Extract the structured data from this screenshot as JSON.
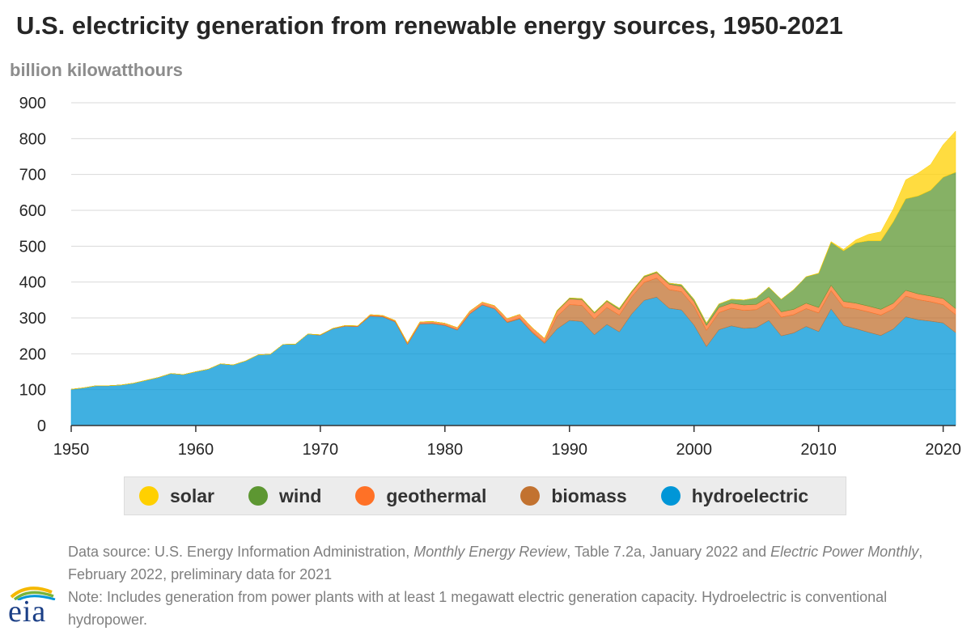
{
  "title": "U.S. electricity generation from renewable energy sources, 1950-2021",
  "unit_label": "billion kilowatthours",
  "legend": [
    {
      "key": "solar",
      "label": "solar",
      "color": "#ffd000"
    },
    {
      "key": "wind",
      "label": "wind",
      "color": "#5d9732"
    },
    {
      "key": "geothermal",
      "label": "geothermal",
      "color": "#ff7126"
    },
    {
      "key": "biomass",
      "label": "biomass",
      "color": "#c27230"
    },
    {
      "key": "hydroelectric",
      "label": "hydroelectric",
      "color": "#0096d7"
    }
  ],
  "footnote": {
    "source_prefix": "Data source: U.S. Energy Information Administration, ",
    "source_pub1": "Monthly Energy Review",
    "source_mid": ", Table 7.2a, January 2022 and ",
    "source_pub2": "Electric Power Monthly",
    "source_suffix": ", February 2022, preliminary data for 2021",
    "note": "Note: Includes generation from power plants with at least 1 megawatt electric generation capacity. Hydroelectric is conventional hydropower."
  },
  "logo_text": "eia",
  "chart_data": {
    "type": "area",
    "stacked": true,
    "title": "U.S. electricity generation from renewable energy sources, 1950-2021",
    "ylabel": "billion kilowatthours",
    "xlabel": "",
    "xlim": [
      1950,
      2021
    ],
    "ylim": [
      0,
      900
    ],
    "yticks": [
      0,
      100,
      200,
      300,
      400,
      500,
      600,
      700,
      800,
      900
    ],
    "xticks": [
      1950,
      1960,
      1970,
      1980,
      1990,
      2000,
      2010,
      2020
    ],
    "grid": "horizontal",
    "legend_position": "bottom",
    "x": [
      1950,
      1951,
      1952,
      1953,
      1954,
      1955,
      1956,
      1957,
      1958,
      1959,
      1960,
      1961,
      1962,
      1963,
      1964,
      1965,
      1966,
      1967,
      1968,
      1969,
      1970,
      1971,
      1972,
      1973,
      1974,
      1975,
      1976,
      1977,
      1978,
      1979,
      1980,
      1981,
      1982,
      1983,
      1984,
      1985,
      1986,
      1987,
      1988,
      1989,
      1990,
      1991,
      1992,
      1993,
      1994,
      1995,
      1996,
      1997,
      1998,
      1999,
      2000,
      2001,
      2002,
      2003,
      2004,
      2005,
      2006,
      2007,
      2008,
      2009,
      2010,
      2011,
      2012,
      2013,
      2014,
      2015,
      2016,
      2017,
      2018,
      2019,
      2020,
      2021
    ],
    "series": [
      {
        "name": "hydroelectric",
        "color": "#0096d7",
        "values": [
          101,
          105,
          111,
          111,
          113,
          118,
          126,
          134,
          145,
          142,
          150,
          157,
          172,
          169,
          180,
          197,
          199,
          226,
          227,
          255,
          252,
          270,
          277,
          276,
          305,
          303,
          289,
          226,
          283,
          284,
          279,
          266,
          311,
          336,
          325,
          287,
          297,
          259,
          229,
          269,
          293,
          290,
          253,
          282,
          261,
          311,
          349,
          358,
          327,
          322,
          280,
          220,
          267,
          278,
          271,
          273,
          293,
          250,
          258,
          276,
          262,
          325,
          279,
          270,
          260,
          251,
          269,
          303,
          295,
          291,
          286,
          259
        ]
      },
      {
        "name": "biomass",
        "color": "#c27230",
        "values": [
          0,
          0,
          0,
          0,
          0,
          0,
          0,
          0,
          0,
          0,
          0,
          0,
          0,
          0,
          0,
          0,
          0,
          0,
          0,
          0,
          0,
          0,
          0,
          0,
          1,
          1,
          1,
          1,
          1,
          1,
          1,
          1,
          1,
          1,
          1,
          2,
          2,
          3,
          3,
          35,
          44,
          45,
          44,
          47,
          47,
          48,
          50,
          53,
          52,
          51,
          52,
          45,
          48,
          49,
          50,
          50,
          51,
          52,
          51,
          50,
          52,
          51,
          51,
          55,
          57,
          57,
          56,
          58,
          56,
          54,
          51,
          50
        ]
      },
      {
        "name": "geothermal",
        "color": "#ff7126",
        "values": [
          0,
          0,
          0,
          0,
          0,
          0,
          0,
          0,
          0,
          0,
          0,
          0,
          0,
          0,
          0,
          0,
          0,
          0,
          0,
          0,
          1,
          1,
          2,
          2,
          3,
          3,
          3,
          4,
          5,
          5,
          5,
          6,
          7,
          7,
          8,
          9,
          11,
          11,
          11,
          15,
          16,
          16,
          16,
          17,
          15,
          13,
          15,
          15,
          15,
          15,
          14,
          14,
          14,
          14,
          15,
          15,
          15,
          15,
          15,
          15,
          15,
          15,
          16,
          16,
          16,
          16,
          16,
          16,
          16,
          16,
          17,
          17
        ]
      },
      {
        "name": "wind",
        "color": "#5d9732",
        "values": [
          0,
          0,
          0,
          0,
          0,
          0,
          0,
          0,
          0,
          0,
          0,
          0,
          0,
          0,
          0,
          0,
          0,
          0,
          0,
          0,
          0,
          0,
          0,
          0,
          0,
          0,
          0,
          0,
          0,
          0,
          0,
          0,
          0,
          0,
          0,
          0,
          0,
          0,
          0,
          2,
          3,
          3,
          3,
          3,
          4,
          3,
          3,
          3,
          3,
          5,
          6,
          7,
          10,
          11,
          14,
          18,
          27,
          35,
          55,
          74,
          95,
          120,
          141,
          168,
          182,
          191,
          227,
          255,
          273,
          295,
          338,
          380
        ]
      },
      {
        "name": "solar",
        "color": "#ffd000",
        "values": [
          0,
          0,
          0,
          0,
          0,
          0,
          0,
          0,
          0,
          0,
          0,
          0,
          0,
          0,
          0,
          0,
          0,
          0,
          0,
          0,
          0,
          0,
          0,
          0,
          0,
          0,
          0,
          0,
          0,
          0,
          0,
          0,
          0,
          0,
          0,
          0,
          0,
          0,
          0,
          0,
          0,
          0,
          0,
          0,
          0,
          0,
          0,
          0,
          0,
          0,
          0,
          0,
          0,
          0,
          0,
          0,
          0,
          0,
          0,
          0,
          1,
          2,
          4,
          9,
          18,
          25,
          36,
          53,
          64,
          72,
          91,
          115
        ]
      }
    ]
  }
}
